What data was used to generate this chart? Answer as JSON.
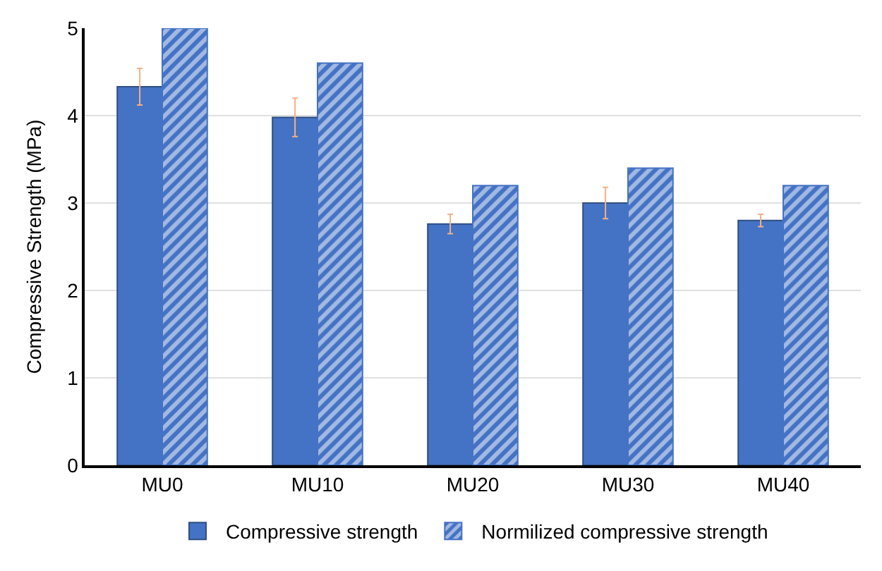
{
  "chart_data": {
    "type": "bar",
    "ylabel": "Compressive Strength (MPa)",
    "categories": [
      "MU0",
      "MU10",
      "MU20",
      "MU30",
      "MU40"
    ],
    "series": [
      {
        "name": "Compressive strength",
        "color": "#4472c4",
        "values": [
          4.33,
          3.98,
          2.76,
          3.0,
          2.8
        ],
        "errors": [
          0.21,
          0.22,
          0.11,
          0.18,
          0.07
        ]
      },
      {
        "name": "Normilized compressive strength",
        "color": "#4472c4",
        "values": [
          5.0,
          4.6,
          3.2,
          3.4,
          3.2
        ]
      }
    ],
    "ylim": [
      0,
      5
    ],
    "yticks": [
      0,
      1,
      2,
      3,
      4,
      5
    ],
    "grid": "y",
    "legend": "bottom"
  }
}
